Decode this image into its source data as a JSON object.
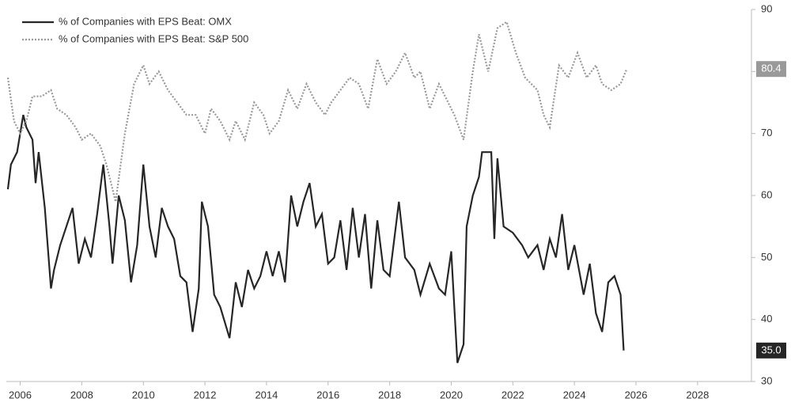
{
  "chart_data": {
    "type": "line",
    "series": [
      {
        "name": "% of Companies with EPS Beat: OMX",
        "color": "#262626",
        "dash": "solid",
        "end_label": "35.0",
        "x": [
          2005.6,
          2005.7,
          2005.9,
          2006.1,
          2006.2,
          2006.4,
          2006.5,
          2006.6,
          2006.8,
          2007.0,
          2007.1,
          2007.3,
          2007.5,
          2007.7,
          2007.9,
          2008.1,
          2008.3,
          2008.5,
          2008.7,
          2008.9,
          2009.0,
          2009.2,
          2009.4,
          2009.6,
          2009.8,
          2010.0,
          2010.2,
          2010.4,
          2010.6,
          2010.8,
          2011.0,
          2011.2,
          2011.4,
          2011.6,
          2011.8,
          2011.9,
          2012.1,
          2012.3,
          2012.5,
          2012.8,
          2013.0,
          2013.2,
          2013.4,
          2013.6,
          2013.8,
          2014.0,
          2014.2,
          2014.4,
          2014.6,
          2014.8,
          2015.0,
          2015.2,
          2015.4,
          2015.6,
          2015.8,
          2016.0,
          2016.2,
          2016.4,
          2016.6,
          2016.8,
          2017.0,
          2017.2,
          2017.4,
          2017.6,
          2017.8,
          2018.0,
          2018.3,
          2018.5,
          2018.8,
          2019.0,
          2019.3,
          2019.6,
          2019.8,
          2020.0,
          2020.2,
          2020.4,
          2020.5,
          2020.7,
          2020.9,
          2021.0,
          2021.3,
          2021.4,
          2021.5,
          2021.7,
          2022.0,
          2022.3,
          2022.5,
          2022.8,
          2023.0,
          2023.2,
          2023.4,
          2023.6,
          2023.8,
          2024.0,
          2024.3,
          2024.5,
          2024.7,
          2024.9,
          2025.1,
          2025.3,
          2025.5,
          2025.6
        ],
        "values": [
          61,
          65,
          67,
          73,
          71,
          69,
          62,
          67,
          58,
          45,
          48,
          52,
          55,
          58,
          49,
          53,
          50,
          57,
          65,
          55,
          49,
          60,
          56,
          46,
          52,
          65,
          55,
          50,
          58,
          55,
          53,
          47,
          46,
          38,
          45,
          59,
          55,
          44,
          42,
          37,
          46,
          42,
          48,
          45,
          47,
          51,
          47,
          51,
          46,
          60,
          55,
          59,
          62,
          55,
          57,
          49,
          50,
          56,
          48,
          58,
          50,
          57,
          45,
          56,
          48,
          47,
          59,
          50,
          48,
          44,
          49,
          45,
          44,
          51,
          33,
          36,
          55,
          60,
          63,
          67,
          67,
          53,
          66,
          55,
          54,
          52,
          50,
          52,
          48,
          53,
          50,
          57,
          48,
          52,
          44,
          49,
          41,
          38,
          46,
          47,
          44,
          35
        ]
      },
      {
        "name": "% of Companies with EPS Beat: S&P 500",
        "color": "#999999",
        "dash": "dotted",
        "end_label": "80.4",
        "x": [
          2005.6,
          2005.8,
          2006.0,
          2006.2,
          2006.4,
          2006.7,
          2007.0,
          2007.2,
          2007.5,
          2007.8,
          2008.0,
          2008.3,
          2008.6,
          2008.8,
          2009.1,
          2009.4,
          2009.7,
          2010.0,
          2010.2,
          2010.5,
          2010.8,
          2011.1,
          2011.4,
          2011.7,
          2012.0,
          2012.2,
          2012.5,
          2012.8,
          2013.0,
          2013.3,
          2013.6,
          2013.9,
          2014.1,
          2014.4,
          2014.7,
          2015.0,
          2015.3,
          2015.6,
          2015.9,
          2016.1,
          2016.4,
          2016.7,
          2017.0,
          2017.3,
          2017.6,
          2017.9,
          2018.2,
          2018.5,
          2018.8,
          2019.0,
          2019.3,
          2019.6,
          2019.9,
          2020.1,
          2020.4,
          2020.7,
          2020.9,
          2021.2,
          2021.5,
          2021.8,
          2022.1,
          2022.4,
          2022.8,
          2023.0,
          2023.2,
          2023.5,
          2023.8,
          2024.1,
          2024.4,
          2024.7,
          2024.9,
          2025.2,
          2025.5,
          2025.7
        ],
        "values": [
          79,
          72,
          70,
          72,
          76,
          76,
          77,
          74,
          73,
          71,
          69,
          70,
          68,
          65,
          59,
          70,
          78,
          81,
          78,
          80,
          77,
          75,
          73,
          73,
          70,
          74,
          72,
          69,
          72,
          69,
          75,
          73,
          70,
          72,
          77,
          74,
          78,
          75,
          73,
          75,
          77,
          79,
          78,
          74,
          82,
          78,
          80,
          83,
          79,
          80,
          74,
          78,
          75,
          73,
          69,
          80,
          86,
          80,
          87,
          88,
          83,
          79,
          77,
          73,
          71,
          81,
          79,
          83,
          79,
          81,
          78,
          77,
          78,
          80.4
        ]
      }
    ],
    "xlim": [
      2005.55,
      2029.75
    ],
    "xticks": [
      2006,
      2008,
      2010,
      2012,
      2014,
      2016,
      2018,
      2020,
      2022,
      2024,
      2026,
      2028
    ],
    "ylim": [
      30,
      90
    ],
    "yticks": [
      30,
      40,
      50,
      60,
      70,
      80,
      90
    ],
    "legend": "top-left"
  }
}
